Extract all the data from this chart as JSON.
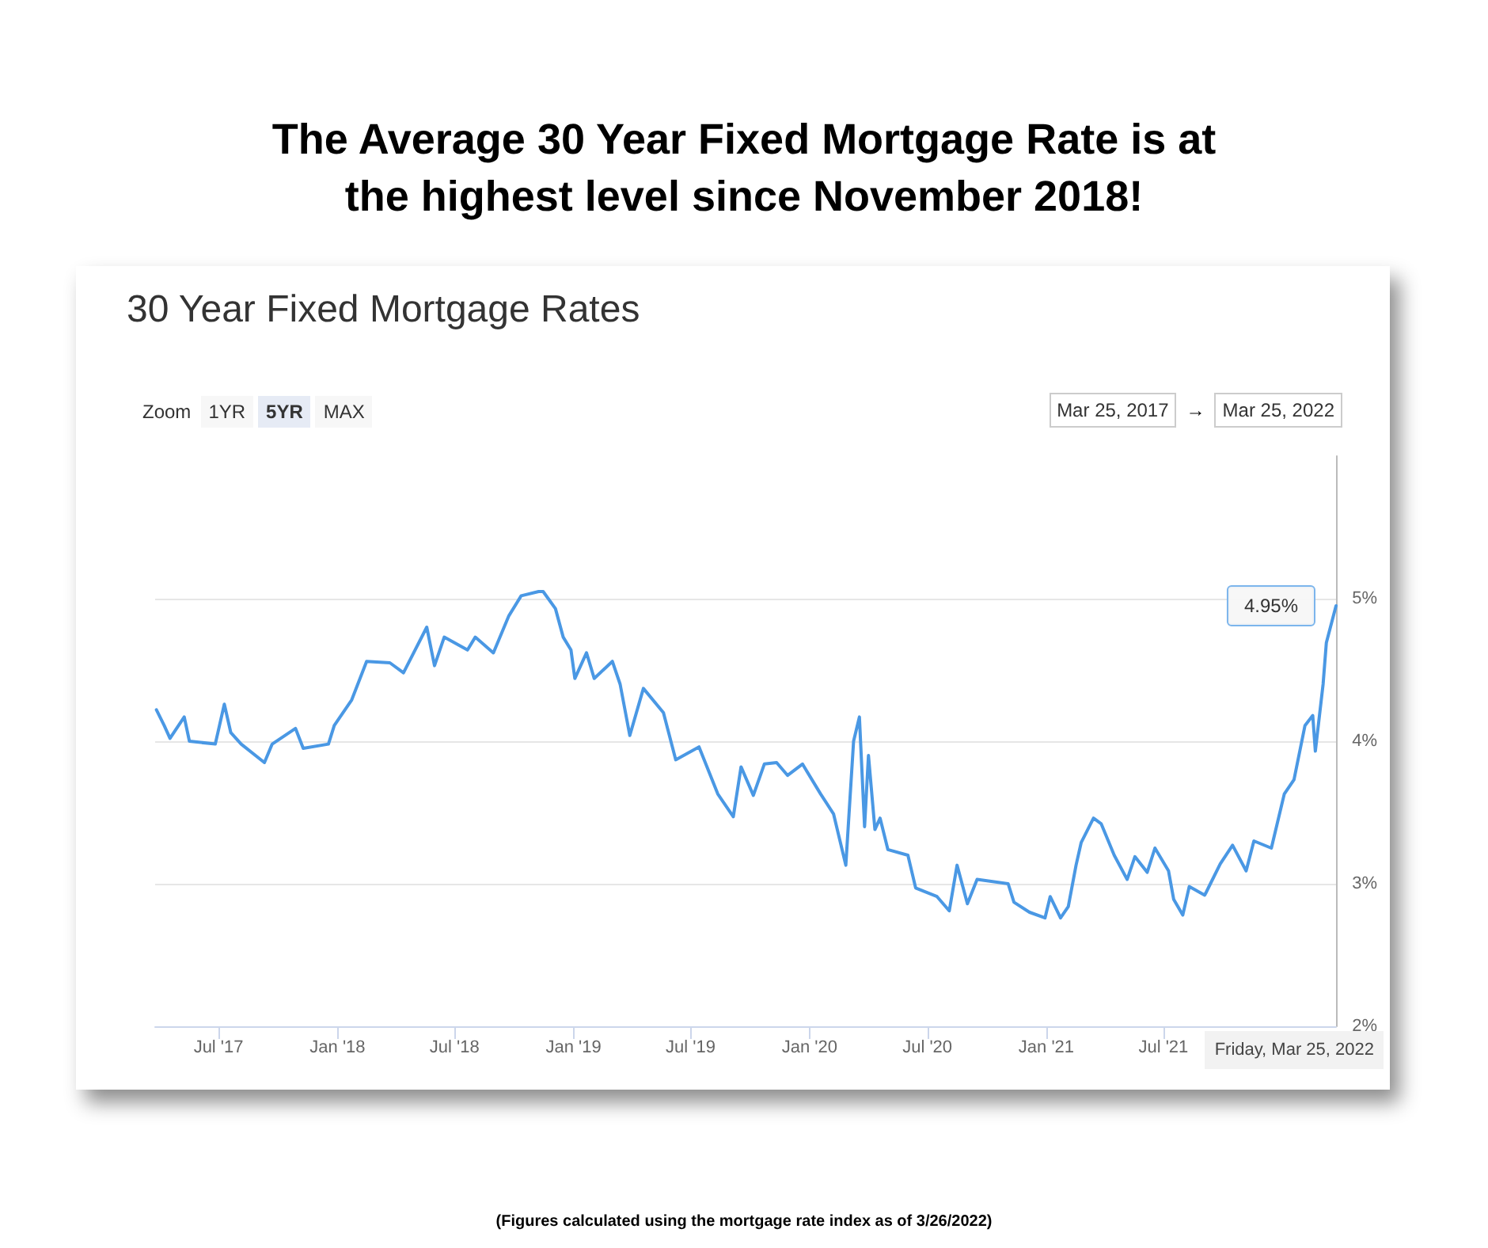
{
  "chart_data": {
    "type": "line",
    "title": "The Average 30 Year Fixed Mortgage Rate is at the highest level since November 2018!",
    "subtitle": "30 Year Fixed Mortgage Rates",
    "annotations": [
      "Zoom",
      "1YR",
      "5YR",
      "MAX",
      "Mar 25, 2017",
      "→",
      "Mar 25, 2022",
      "Friday, Mar 25, 2022",
      {
        "text": "4.95%",
        "x": "2022-03-25",
        "y": 4.95
      },
      "(Figures calculated using the mortgage rate index as of 3/26/2022)"
    ],
    "x": [
      "2017-03-27",
      "2017-04-08",
      "2017-04-17",
      "2017-05-09",
      "2017-05-17",
      "2017-06-26",
      "2017-07-10",
      "2017-07-20",
      "2017-08-05",
      "2017-09-10",
      "2017-09-22",
      "2017-10-28",
      "2017-11-09",
      "2017-12-18",
      "2017-12-27",
      "2018-01-23",
      "2018-02-15",
      "2018-03-23",
      "2018-04-13",
      "2018-05-19",
      "2018-05-31",
      "2018-06-15",
      "2018-07-21",
      "2018-08-02",
      "2018-08-30",
      "2018-09-23",
      "2018-10-12",
      "2018-11-08",
      "2018-11-15",
      "2018-12-04",
      "2018-12-16",
      "2018-12-28",
      "2019-01-03",
      "2019-01-21",
      "2019-02-02",
      "2019-03-02",
      "2019-03-14",
      "2019-03-29",
      "2019-04-19",
      "2019-05-20",
      "2019-06-08",
      "2019-07-14",
      "2019-08-12",
      "2019-09-05",
      "2019-09-17",
      "2019-10-06",
      "2019-10-23",
      "2019-11-11",
      "2019-11-28",
      "2019-12-21",
      "2020-01-18",
      "2020-02-07",
      "2020-02-26",
      "2020-03-09",
      "2020-03-18",
      "2020-03-26",
      "2020-04-01",
      "2020-04-11",
      "2020-04-19",
      "2020-05-01",
      "2020-06-01",
      "2020-06-13",
      "2020-07-16",
      "2020-08-04",
      "2020-08-16",
      "2020-09-01",
      "2020-09-16",
      "2020-11-03",
      "2020-11-12",
      "2020-12-06",
      "2020-12-30",
      "2021-01-07",
      "2021-01-23",
      "2021-02-04",
      "2021-02-16",
      "2021-02-24",
      "2021-03-15",
      "2021-03-27",
      "2021-04-16",
      "2021-05-06",
      "2021-05-18",
      "2021-06-06",
      "2021-06-18",
      "2021-07-09",
      "2021-07-17",
      "2021-07-31",
      "2021-08-10",
      "2021-09-03",
      "2021-09-27",
      "2021-10-16",
      "2021-11-06",
      "2021-11-18",
      "2021-12-15",
      "2022-01-04",
      "2022-01-19",
      "2022-02-05",
      "2022-02-17",
      "2022-02-21",
      "2022-03-05",
      "2022-03-10",
      "2022-03-25"
    ],
    "series": [
      {
        "color": "#4a98e4",
        "values": [
          4.22,
          4.11,
          4.02,
          4.17,
          4.0,
          3.98,
          4.26,
          4.06,
          3.98,
          3.85,
          3.98,
          4.09,
          3.95,
          3.98,
          4.11,
          4.29,
          4.56,
          4.55,
          4.48,
          4.8,
          4.53,
          4.73,
          4.64,
          4.73,
          4.62,
          4.88,
          5.02,
          5.05,
          5.05,
          4.93,
          4.73,
          4.64,
          4.44,
          4.62,
          4.44,
          4.56,
          4.4,
          4.04,
          4.37,
          4.2,
          3.87,
          3.96,
          3.63,
          3.47,
          3.82,
          3.62,
          3.84,
          3.85,
          3.76,
          3.84,
          3.63,
          3.49,
          3.13,
          4.0,
          4.17,
          3.4,
          3.9,
          3.38,
          3.46,
          3.24,
          3.2,
          2.97,
          2.91,
          2.81,
          3.13,
          2.86,
          3.03,
          3.0,
          2.87,
          2.8,
          2.76,
          2.91,
          2.76,
          2.84,
          3.13,
          3.29,
          3.46,
          3.42,
          3.2,
          3.03,
          3.19,
          3.08,
          3.25,
          3.09,
          2.89,
          2.78,
          2.98,
          2.92,
          3.14,
          3.27,
          3.09,
          3.3,
          3.25,
          3.63,
          3.73,
          4.11,
          4.18,
          3.93,
          4.4,
          4.69,
          4.95
        ]
      }
    ],
    "xlim": [
      "2017-03-25",
      "2022-03-25"
    ],
    "xticks": [
      {
        "value": "2017-07-01",
        "label": "Jul '17"
      },
      {
        "value": "2018-01-01",
        "label": "Jan '18"
      },
      {
        "value": "2018-07-01",
        "label": "Jul '18"
      },
      {
        "value": "2019-01-01",
        "label": "Jan '19"
      },
      {
        "value": "2019-07-01",
        "label": "Jul '19"
      },
      {
        "value": "2020-01-01",
        "label": "Jan '20"
      },
      {
        "value": "2020-07-01",
        "label": "Jul '20"
      },
      {
        "value": "2021-01-01",
        "label": "Jan '21"
      },
      {
        "value": "2021-07-01",
        "label": "Jul '21"
      }
    ],
    "ylim": [
      2,
      6
    ],
    "yticks": [
      {
        "value": 2,
        "label": "2%"
      },
      {
        "value": 3,
        "label": "3%"
      },
      {
        "value": 4,
        "label": "4%"
      },
      {
        "value": 5,
        "label": "5%"
      }
    ],
    "grid": "y",
    "marker": "none",
    "line_style": "solid"
  }
}
